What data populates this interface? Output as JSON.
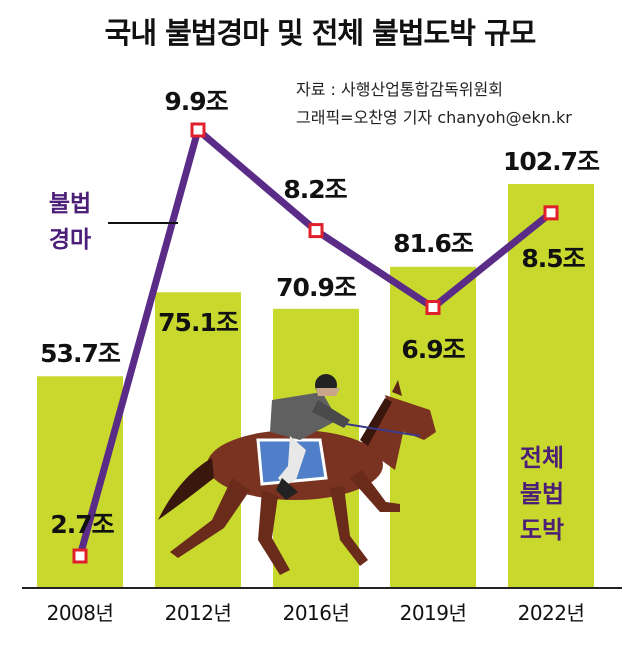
{
  "title": "국내 불법경마 및 전체 불법도박 규모",
  "source_line1": "자료 : 사행산업통합감독위원회",
  "source_line2": "그래픽=오찬영 기자 chanyoh@ekn.kr",
  "legend_line_series": [
    "불법",
    "경마"
  ],
  "legend_bar_series": [
    "전체",
    "불법",
    "도박"
  ],
  "colors": {
    "bar": "#c8d82c",
    "line": "#5a2b87",
    "marker_stroke": "#e0202a",
    "marker_fill": "#ffffff"
  },
  "illustration": "horse-and-jockey",
  "chart_data": {
    "type": "bar",
    "categories": [
      "2008년",
      "2012년",
      "2016년",
      "2019년",
      "2022년"
    ],
    "series": [
      {
        "name": "전체 불법도박",
        "type": "bar",
        "values": [
          53.7,
          75.1,
          70.9,
          81.6,
          102.7
        ],
        "labels": [
          "53.7조",
          "75.1조",
          "70.9조",
          "81.6조",
          "102.7조"
        ]
      },
      {
        "name": "불법경마",
        "type": "line",
        "values": [
          2.7,
          9.9,
          8.2,
          6.9,
          8.5
        ],
        "labels": [
          "2.7조",
          "9.9조",
          "8.2조",
          "6.9조",
          "8.5조"
        ]
      }
    ],
    "unit": "조",
    "grid": false,
    "legend": "inline"
  }
}
